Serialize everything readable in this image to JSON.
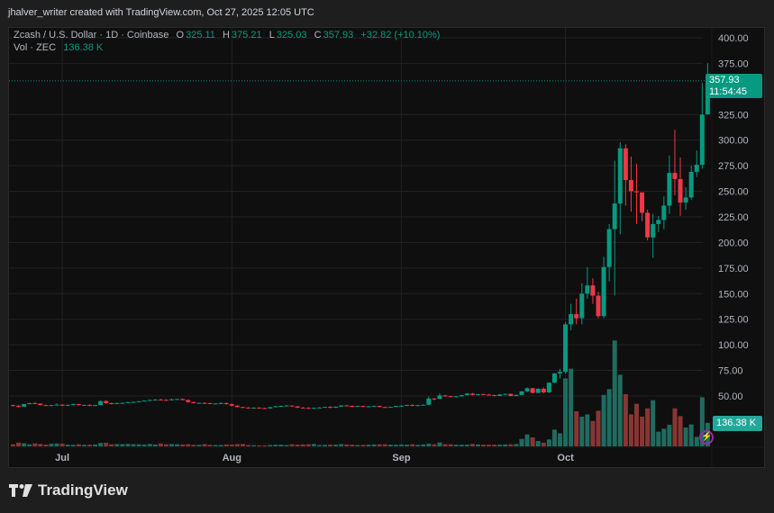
{
  "header": {
    "text": "jhalver_writer created with TradingView.com, Oct 27, 2025 12:05 UTC"
  },
  "legend": {
    "symbol": "Zcash / U.S. Dollar · 1D · Coinbase",
    "o_label": "O",
    "o": "325.11",
    "h_label": "H",
    "h": "375.21",
    "l_label": "L",
    "l": "325.03",
    "c_label": "C",
    "c": "357.93",
    "change": "+32.82 (+10.10%)",
    "vol_label": "Vol · ZEC",
    "vol": "136.38 K"
  },
  "price_label": {
    "price": "357.93",
    "countdown": "11:54:45"
  },
  "volume_label": "136.38 K",
  "footer": {
    "brand": "TradingView"
  },
  "colors": {
    "up": "#089981",
    "down": "#f23645",
    "vol_up": "#1f6b5f",
    "vol_down": "#8a3534",
    "grid": "#222222",
    "axis_text": "#b2b5be"
  },
  "chart_data": {
    "type": "candlestick",
    "symbol": "ZECUSD",
    "interval": "1D",
    "y_ticks": [
      "50.00",
      "75.00",
      "100.00",
      "125.00",
      "150.00",
      "175.00",
      "200.00",
      "225.00",
      "250.00",
      "275.00",
      "300.00",
      "325.00",
      "375.00",
      "400.00"
    ],
    "x_ticks": [
      "Jul",
      "Aug",
      "Sep",
      "Oct"
    ],
    "date_range": [
      "2025-06-22",
      "2025-10-27"
    ],
    "volume_unit": "K",
    "candles_ohlcv": [
      [
        41,
        41.5,
        39.8,
        40.5,
        12
      ],
      [
        40.5,
        41,
        39,
        39.5,
        22
      ],
      [
        39.5,
        42.3,
        39.3,
        42,
        18
      ],
      [
        42,
        43.3,
        41.8,
        43,
        12
      ],
      [
        43,
        44,
        42.2,
        42.5,
        18
      ],
      [
        42.5,
        42.8,
        40.8,
        41,
        14
      ],
      [
        41,
        41.5,
        40.2,
        40.5,
        10
      ],
      [
        40.5,
        41.3,
        40.2,
        41,
        15
      ],
      [
        41,
        42.7,
        40.8,
        41.5,
        17
      ],
      [
        41.5,
        41.8,
        40.2,
        40.5,
        16
      ],
      [
        40.5,
        41.5,
        40,
        41.3,
        10
      ],
      [
        41.3,
        42.5,
        41,
        42,
        9
      ],
      [
        42,
        42.3,
        40.8,
        41,
        12
      ],
      [
        41,
        41.5,
        40.5,
        41.3,
        9
      ],
      [
        41.3,
        41.6,
        40,
        40.8,
        10
      ],
      [
        40.8,
        41.2,
        40.3,
        41,
        11
      ],
      [
        41,
        45.5,
        40.8,
        45,
        20
      ],
      [
        45,
        46,
        42.5,
        43,
        21
      ],
      [
        43,
        43.5,
        41.5,
        42.5,
        12
      ],
      [
        42.5,
        43.5,
        42,
        43,
        13
      ],
      [
        43,
        43.6,
        42.3,
        43.3,
        13
      ],
      [
        43.3,
        44.2,
        43,
        44,
        14
      ],
      [
        44,
        44.8,
        43.4,
        44.2,
        13
      ],
      [
        44.2,
        45,
        44,
        44.8,
        12
      ],
      [
        44.8,
        45.7,
        44.4,
        45.5,
        11
      ],
      [
        45.5,
        46.5,
        45,
        46,
        14
      ],
      [
        46,
        47,
        45.6,
        46.5,
        11
      ],
      [
        46.5,
        47.2,
        45.8,
        46.2,
        17
      ],
      [
        46.2,
        46.8,
        45.5,
        45.8,
        12
      ],
      [
        45.8,
        47.2,
        45.6,
        46.8,
        14
      ],
      [
        46.8,
        47.4,
        46.5,
        47,
        12
      ],
      [
        47,
        47.6,
        45.8,
        46,
        11
      ],
      [
        46,
        46.6,
        43.5,
        44,
        12
      ],
      [
        44,
        44.3,
        42.5,
        43,
        9
      ],
      [
        43,
        43.5,
        42.8,
        43.2,
        9
      ],
      [
        43.2,
        43.8,
        42.5,
        43,
        13
      ],
      [
        43,
        43.2,
        42.1,
        42.3,
        9
      ],
      [
        42.3,
        42.9,
        41.9,
        42.7,
        8
      ],
      [
        42.7,
        44,
        42.2,
        43,
        8
      ],
      [
        43,
        43.8,
        41.6,
        42,
        11
      ],
      [
        42,
        42.5,
        39.8,
        40.5,
        10
      ],
      [
        40.5,
        41,
        38.8,
        39.2,
        13
      ],
      [
        39.2,
        39.5,
        38.3,
        38.7,
        14
      ],
      [
        38.7,
        39,
        37.8,
        38.2,
        8
      ],
      [
        38.2,
        38.9,
        37.6,
        38.6,
        7
      ],
      [
        38.6,
        38.9,
        37.9,
        38.2,
        6
      ],
      [
        38.2,
        38.5,
        37.5,
        37.8,
        6
      ],
      [
        37.8,
        39.3,
        37.6,
        39,
        8
      ],
      [
        39,
        40.2,
        38.8,
        40,
        10
      ],
      [
        40,
        40.6,
        39.5,
        40.3,
        10
      ],
      [
        40.3,
        41,
        39.9,
        40.6,
        8
      ],
      [
        40.6,
        40.9,
        39.5,
        39.8,
        12
      ],
      [
        39.8,
        40.2,
        38.2,
        38.6,
        10
      ],
      [
        38.6,
        39.2,
        38,
        38.3,
        11
      ],
      [
        38.3,
        39,
        37.5,
        37.8,
        12
      ],
      [
        37.8,
        38.6,
        37.4,
        38.4,
        14
      ],
      [
        38.4,
        39,
        38,
        38.7,
        8
      ],
      [
        38.7,
        39.5,
        38.5,
        39.3,
        9
      ],
      [
        39.3,
        40,
        38.1,
        38.5,
        10
      ],
      [
        38.5,
        39.8,
        38.3,
        39.5,
        10
      ],
      [
        39.5,
        41,
        39.2,
        40.7,
        13
      ],
      [
        40.7,
        41.2,
        40,
        40.3,
        11
      ],
      [
        40.3,
        40.6,
        39.2,
        39.5,
        10
      ],
      [
        39.5,
        40.5,
        39.3,
        40.2,
        8
      ],
      [
        40.2,
        40.4,
        39.2,
        39.4,
        9
      ],
      [
        39.4,
        40.2,
        39,
        39.9,
        10
      ],
      [
        39.9,
        40.5,
        39.6,
        40.2,
        11
      ],
      [
        40.2,
        40.5,
        38.9,
        39.2,
        12
      ],
      [
        39.2,
        39.5,
        38.6,
        38.9,
        12
      ],
      [
        38.9,
        39.5,
        38.6,
        39.3,
        10
      ],
      [
        39.3,
        40.5,
        39.1,
        40.2,
        9
      ],
      [
        40.2,
        40.8,
        39.5,
        40.5,
        11
      ],
      [
        40.5,
        41.4,
        40.1,
        41.2,
        10
      ],
      [
        41.2,
        41.6,
        39.8,
        40.3,
        12
      ],
      [
        40.3,
        41.3,
        40,
        41,
        9
      ],
      [
        41,
        41.6,
        40.6,
        41.4,
        11
      ],
      [
        41.4,
        49.5,
        41,
        47.5,
        16
      ],
      [
        47.5,
        48,
        45.8,
        47.2,
        12
      ],
      [
        47.2,
        52.5,
        47,
        50.5,
        23
      ],
      [
        50.5,
        51,
        49.2,
        49.8,
        13
      ],
      [
        49.8,
        50.2,
        48.6,
        49,
        12
      ],
      [
        49,
        50,
        48.5,
        49.6,
        10
      ],
      [
        49.6,
        51,
        49.3,
        50.8,
        10
      ],
      [
        50.8,
        52.8,
        50.5,
        52.3,
        10
      ],
      [
        52.3,
        53,
        50.5,
        51,
        14
      ],
      [
        51,
        52,
        50.5,
        51.8,
        11
      ],
      [
        51.8,
        52,
        51,
        51.3,
        10
      ],
      [
        51.3,
        52,
        50.6,
        50.9,
        10
      ],
      [
        50.9,
        51.2,
        49.5,
        50,
        10
      ],
      [
        50,
        51.8,
        49.8,
        51.5,
        10
      ],
      [
        51.5,
        52.3,
        51,
        52,
        11
      ],
      [
        52,
        52.4,
        49.8,
        50,
        12
      ],
      [
        50,
        51.5,
        49.5,
        51,
        14
      ],
      [
        51,
        54.8,
        50.8,
        54.5,
        43
      ],
      [
        54.5,
        58.5,
        53.5,
        57.5,
        69
      ],
      [
        57.5,
        58,
        52.5,
        53,
        52
      ],
      [
        53,
        57.5,
        52.8,
        57,
        31
      ],
      [
        57,
        58.5,
        52.5,
        53.5,
        22
      ],
      [
        53.5,
        63.5,
        53,
        63,
        40
      ],
      [
        63,
        72.5,
        62.5,
        72,
        97
      ],
      [
        72,
        76.5,
        67,
        73.5,
        75
      ],
      [
        73.5,
        122,
        72,
        120,
        393
      ],
      [
        120,
        140,
        114,
        130,
        449
      ],
      [
        130,
        145,
        120,
        126,
        203
      ],
      [
        126,
        160,
        120,
        150,
        172
      ],
      [
        150,
        176,
        145,
        158,
        185
      ],
      [
        158,
        165,
        140,
        148,
        147
      ],
      [
        148,
        152,
        126,
        128,
        206
      ],
      [
        128,
        186,
        126,
        176,
        298
      ],
      [
        176,
        218,
        162,
        213,
        331
      ],
      [
        213,
        280,
        148,
        238,
        612
      ],
      [
        238,
        298,
        208,
        292,
        414
      ],
      [
        292,
        296,
        236,
        261,
        302
      ],
      [
        261,
        284,
        230,
        250,
        185
      ],
      [
        250,
        277,
        218,
        249,
        246
      ],
      [
        249,
        248,
        221,
        229,
        172
      ],
      [
        229,
        232,
        202,
        205,
        220
      ],
      [
        205,
        228,
        185,
        218,
        267
      ],
      [
        218,
        226,
        210,
        222,
        85
      ],
      [
        222,
        245,
        213,
        236,
        102
      ],
      [
        236,
        285,
        228,
        268,
        125
      ],
      [
        268,
        310,
        246,
        262,
        220
      ],
      [
        262,
        283,
        226,
        239,
        175
      ],
      [
        239,
        254,
        232,
        244,
        109
      ],
      [
        244,
        275,
        242,
        269,
        127
      ],
      [
        269,
        290,
        264,
        276,
        55
      ],
      [
        276,
        356,
        272,
        325,
        284
      ],
      [
        325.11,
        375.21,
        325.03,
        357.93,
        136.38
      ]
    ]
  }
}
